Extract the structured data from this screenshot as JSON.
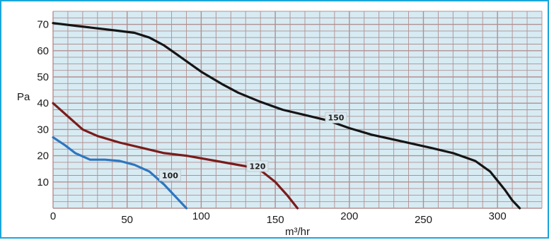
{
  "chart_data": {
    "type": "line",
    "title": "",
    "xlabel": "m³/hr",
    "ylabel": "Pa",
    "xlim": [
      0,
      330
    ],
    "ylim": [
      0,
      75
    ],
    "x_ticks": [
      0,
      50,
      100,
      150,
      200,
      250,
      300
    ],
    "y_ticks": [
      10,
      20,
      30,
      40,
      50,
      60,
      70
    ],
    "grid": true,
    "colors": {
      "background": "#d7ebf3",
      "grid": "#b38f8f",
      "border": "#1aa7dc"
    },
    "series": [
      {
        "name": "150",
        "color": "#151515",
        "label_at": [
          191,
          34.5
        ],
        "points": [
          [
            0,
            70.5
          ],
          [
            15,
            69.5
          ],
          [
            30,
            68.5
          ],
          [
            45,
            67.5
          ],
          [
            55,
            66.8
          ],
          [
            65,
            65
          ],
          [
            75,
            62
          ],
          [
            85,
            58
          ],
          [
            100,
            52
          ],
          [
            115,
            47
          ],
          [
            125,
            44
          ],
          [
            140,
            40.5
          ],
          [
            155,
            37.5
          ],
          [
            170,
            35.5
          ],
          [
            185,
            33.5
          ],
          [
            200,
            30.5
          ],
          [
            215,
            28
          ],
          [
            235,
            25.5
          ],
          [
            255,
            23
          ],
          [
            270,
            21
          ],
          [
            285,
            18
          ],
          [
            295,
            14
          ],
          [
            305,
            7
          ],
          [
            310,
            3
          ],
          [
            315,
            0
          ]
        ]
      },
      {
        "name": "120",
        "color": "#7a1c1a",
        "label_at": [
          138,
          16
        ],
        "points": [
          [
            0,
            40
          ],
          [
            10,
            35
          ],
          [
            20,
            30
          ],
          [
            30,
            27.5
          ],
          [
            45,
            25
          ],
          [
            60,
            23
          ],
          [
            75,
            21
          ],
          [
            90,
            20
          ],
          [
            110,
            18
          ],
          [
            130,
            16
          ],
          [
            140,
            14.5
          ],
          [
            150,
            10
          ],
          [
            158,
            5
          ],
          [
            165,
            0
          ]
        ]
      },
      {
        "name": "100",
        "color": "#2d76c0",
        "label_at": [
          79,
          12.5
        ],
        "points": [
          [
            0,
            27
          ],
          [
            8,
            24
          ],
          [
            15,
            21
          ],
          [
            25,
            18.5
          ],
          [
            35,
            18.5
          ],
          [
            45,
            18
          ],
          [
            55,
            16.5
          ],
          [
            65,
            14
          ],
          [
            75,
            9
          ],
          [
            85,
            3
          ],
          [
            90,
            0
          ]
        ]
      }
    ]
  }
}
